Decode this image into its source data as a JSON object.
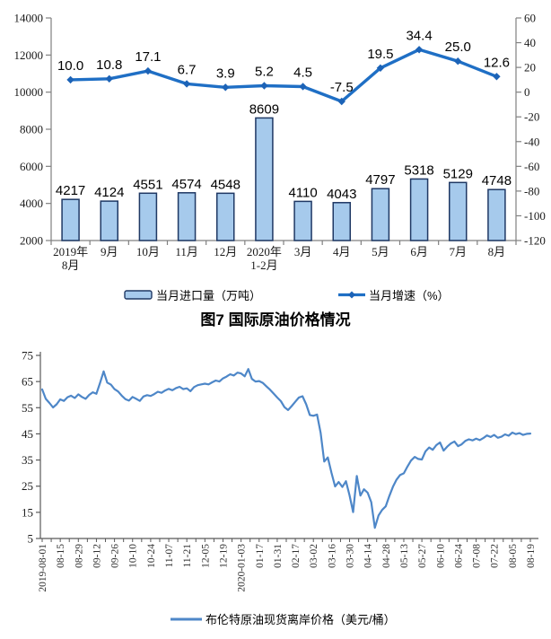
{
  "figure_title": "图7 国际原油价格情况",
  "colors": {
    "bar_fill": "#A6CAEC",
    "bar_stroke": "#1F3864",
    "growth_line": "#1F6FC5",
    "growth_marker": "#1C63B7",
    "brent_line": "#4E87C8",
    "axis": "#808080"
  },
  "chart_data": [
    {
      "type": "bar",
      "subtype": "combo-bar-line",
      "categories": [
        "2019年|8月",
        "9月",
        "10月",
        "11月",
        "12月",
        "2020年|1-2月",
        "3月",
        "4月",
        "5月",
        "6月",
        "7月",
        "8月"
      ],
      "series": [
        {
          "name": "当月进口量（万吨）",
          "type": "bar",
          "values": [
            4217,
            4124,
            4551,
            4574,
            4548,
            8609,
            4110,
            4043,
            4797,
            5318,
            5129,
            4748
          ]
        },
        {
          "name": "当月增速（%）",
          "type": "line",
          "values": [
            10.0,
            10.8,
            17.1,
            6.7,
            3.9,
            5.2,
            4.5,
            -7.5,
            19.5,
            34.4,
            25.0,
            12.6
          ]
        }
      ],
      "left_axis": {
        "min": 2000,
        "max": 14000,
        "step": 2000
      },
      "right_axis": {
        "min": -120,
        "max": 60,
        "step": 20
      },
      "grid": false,
      "legend_position": "bottom",
      "data_labels": true
    },
    {
      "type": "line",
      "title": "图7 国际原油价格情况",
      "x_labels": [
        "2019-08-01",
        "08-15",
        "08-29",
        "09-12",
        "09-26",
        "10-10",
        "10-24",
        "11-07",
        "11-21",
        "12-05",
        "12-19",
        "2020-01-03",
        "01-17",
        "01-31",
        "02-17",
        "03-02",
        "03-16",
        "03-30",
        "04-14",
        "04-28",
        "05-13",
        "05-27",
        "06-10",
        "06-24",
        "07-08",
        "07-22",
        "08-05",
        "08-19"
      ],
      "y_axis": {
        "min": 5,
        "max": 75,
        "step": 10
      },
      "grid": false,
      "legend_position": "bottom",
      "series": [
        {
          "name": "布伦特原油现货离岸价格（美元/桶）",
          "values": [
            62.0,
            58.4,
            56.8,
            55.1,
            56.3,
            58.2,
            57.6,
            59.0,
            59.6,
            58.7,
            60.1,
            59.1,
            58.4,
            59.9,
            60.9,
            60.3,
            64.5,
            68.9,
            64.6,
            63.8,
            62.1,
            61.2,
            59.6,
            58.3,
            57.7,
            59.1,
            58.4,
            57.6,
            59.3,
            59.8,
            59.5,
            60.2,
            61.1,
            60.7,
            61.6,
            62.2,
            61.7,
            62.5,
            63.0,
            62.1,
            62.4,
            61.3,
            62.9,
            63.6,
            63.9,
            64.2,
            63.9,
            64.7,
            65.4,
            65.0,
            66.2,
            66.9,
            67.8,
            67.3,
            68.4,
            68.1,
            67.0,
            69.8,
            66.0,
            65.0,
            65.2,
            64.5,
            63.2,
            61.9,
            60.4,
            58.9,
            57.5,
            55.2,
            54.1,
            55.6,
            57.3,
            58.9,
            59.4,
            56.3,
            52.2,
            51.9,
            52.4,
            45.4,
            34.4,
            36.0,
            30.1,
            24.9,
            26.6,
            24.7,
            26.9,
            21.5,
            15.1,
            28.9,
            21.4,
            23.8,
            22.5,
            18.9,
            9.1,
            13.8,
            15.9,
            17.3,
            21.2,
            24.8,
            27.5,
            29.3,
            29.9,
            32.5,
            34.8,
            36.2,
            35.4,
            35.2,
            38.3,
            39.8,
            38.9,
            40.7,
            41.7,
            38.6,
            40.1,
            41.3,
            42.1,
            40.3,
            41.0,
            42.3,
            42.9,
            42.5,
            43.2,
            42.6,
            43.4,
            44.4,
            43.8,
            44.6,
            43.5,
            43.9,
            44.8,
            44.3,
            45.5,
            44.9,
            45.3,
            44.6,
            45.0,
            45.1
          ]
        }
      ]
    }
  ]
}
